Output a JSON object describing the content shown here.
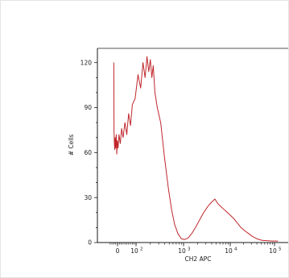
{
  "chart_data": {
    "type": "line",
    "title": "",
    "xlabel": "CH2 APC",
    "ylabel": "# Cells",
    "xscale": "biexponential",
    "ylim": [
      0,
      130
    ],
    "grid": false,
    "line_color": "#c0262b",
    "axis_color": "#1a1a1a",
    "y_ticks": [
      {
        "value": 0,
        "label": "0"
      },
      {
        "value": 30,
        "label": "30"
      },
      {
        "value": 60,
        "label": "60"
      },
      {
        "value": 90,
        "label": "90"
      },
      {
        "value": 120,
        "label": "120"
      }
    ],
    "x_ticks": [
      {
        "value": 0,
        "label": "0"
      },
      {
        "value": 100,
        "label": "10",
        "exp": "2"
      },
      {
        "value": 1000,
        "label": "10",
        "exp": "3"
      },
      {
        "value": 10000,
        "label": "10",
        "exp": "4"
      },
      {
        "value": 100000,
        "label": "10",
        "exp": "5"
      }
    ],
    "series": [
      {
        "points": [
          [
            -20,
            120
          ],
          [
            -19,
            75
          ],
          [
            -17,
            66
          ],
          [
            -15,
            62
          ],
          [
            -13,
            70
          ],
          [
            -10,
            63
          ],
          [
            -7,
            72
          ],
          [
            -4,
            59
          ],
          [
            -1,
            68
          ],
          [
            3,
            63
          ],
          [
            8,
            72
          ],
          [
            15,
            66
          ],
          [
            22,
            76
          ],
          [
            30,
            70
          ],
          [
            40,
            80
          ],
          [
            50,
            72
          ],
          [
            60,
            86
          ],
          [
            70,
            78
          ],
          [
            80,
            92
          ],
          [
            95,
            96
          ],
          [
            110,
            112
          ],
          [
            125,
            103
          ],
          [
            140,
            120
          ],
          [
            155,
            110
          ],
          [
            170,
            124
          ],
          [
            185,
            114
          ],
          [
            200,
            122
          ],
          [
            215,
            110
          ],
          [
            230,
            118
          ],
          [
            250,
            100
          ],
          [
            280,
            90
          ],
          [
            330,
            80
          ],
          [
            400,
            56
          ],
          [
            480,
            36
          ],
          [
            560,
            22
          ],
          [
            650,
            12
          ],
          [
            760,
            6
          ],
          [
            900,
            2.5
          ],
          [
            1050,
            2
          ],
          [
            1250,
            3
          ],
          [
            1500,
            6
          ],
          [
            1800,
            10
          ],
          [
            2200,
            15
          ],
          [
            2700,
            20
          ],
          [
            3300,
            24
          ],
          [
            4000,
            27
          ],
          [
            4700,
            29
          ],
          [
            5400,
            26
          ],
          [
            6300,
            24
          ],
          [
            7400,
            22
          ],
          [
            8700,
            20
          ],
          [
            10200,
            18
          ],
          [
            12000,
            16
          ],
          [
            14500,
            13
          ],
          [
            17500,
            10
          ],
          [
            21000,
            8
          ],
          [
            26000,
            6
          ],
          [
            32000,
            4
          ],
          [
            40000,
            2.5
          ],
          [
            52000,
            1.5
          ],
          [
            70000,
            1.2
          ],
          [
            90000,
            1
          ],
          [
            120000,
            1
          ]
        ]
      }
    ]
  }
}
